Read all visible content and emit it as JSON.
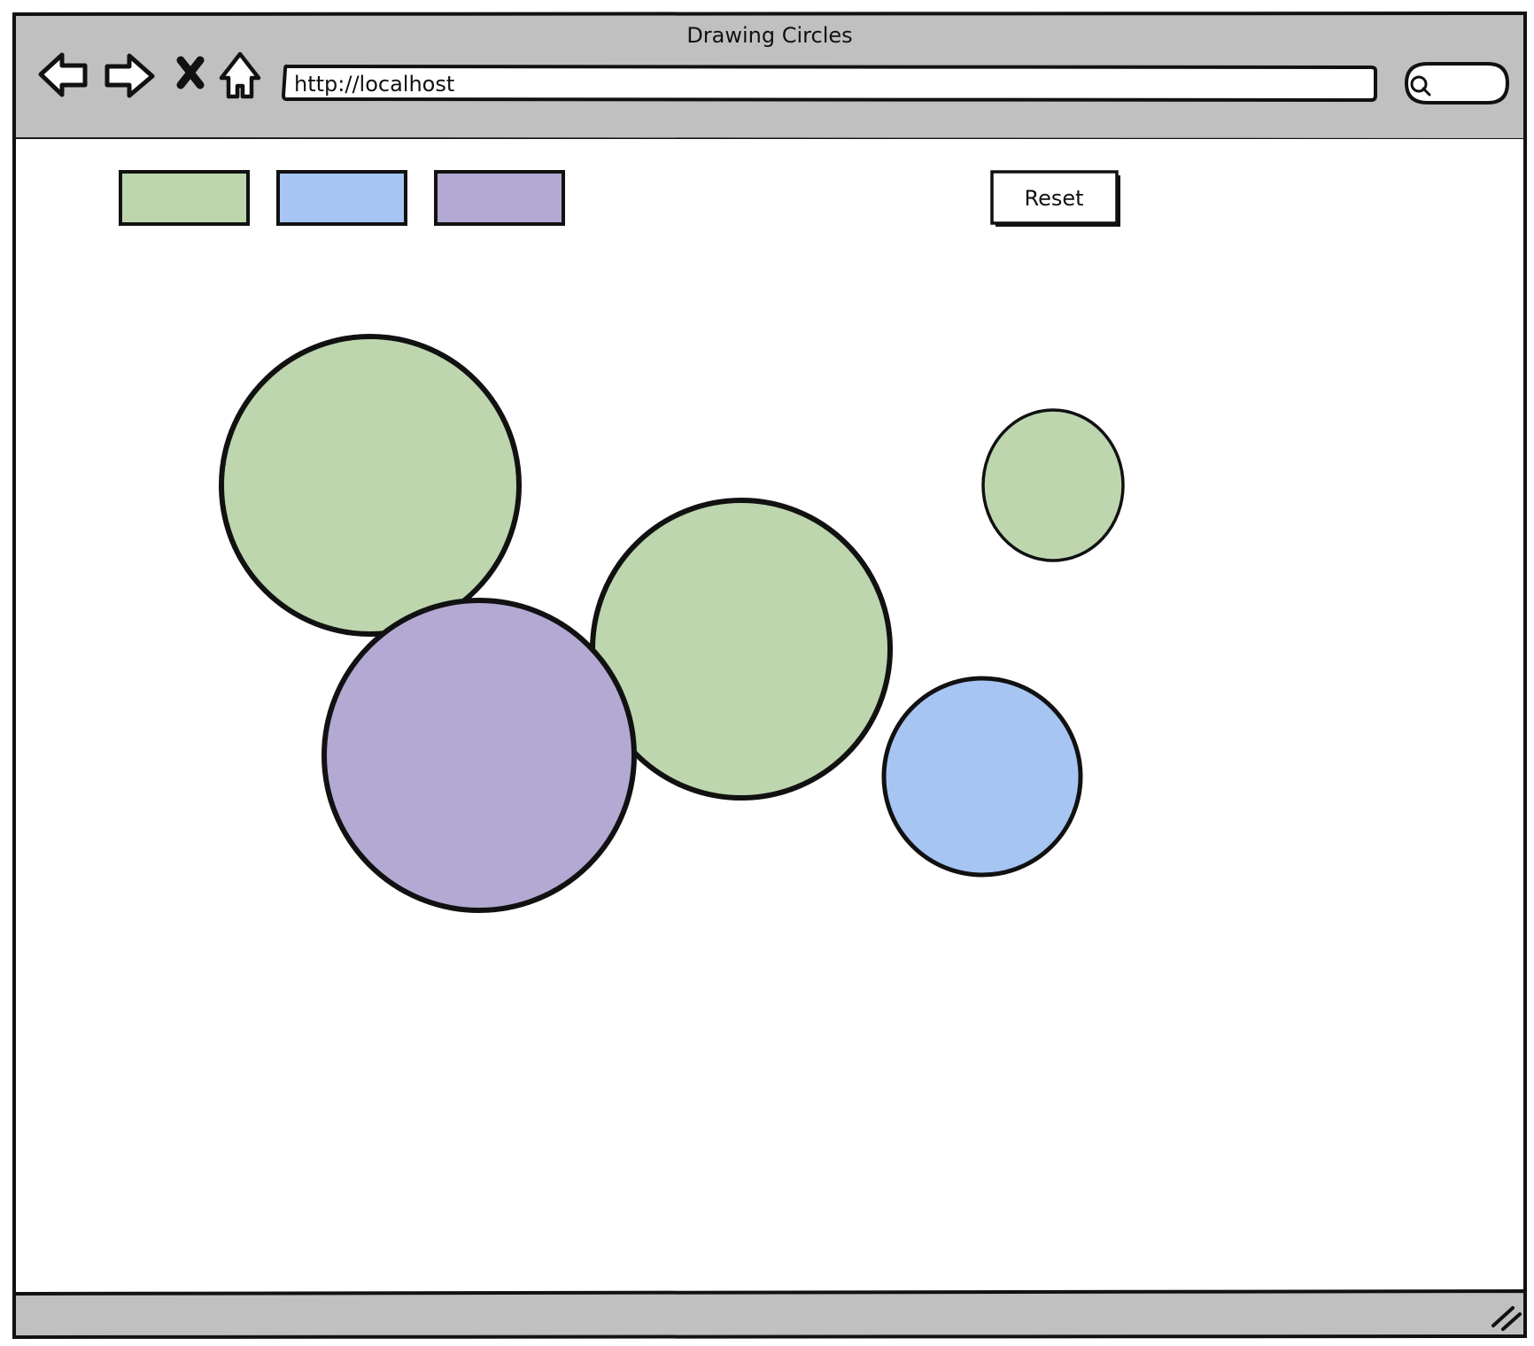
{
  "window": {
    "title": "Drawing Circles"
  },
  "toolbar": {
    "back_icon": "back-arrow-icon",
    "forward_icon": "forward-arrow-icon",
    "stop_icon": "stop-x-icon",
    "home_icon": "home-icon",
    "search_icon": "search-icon"
  },
  "address_bar": {
    "value": "http://localhost"
  },
  "palette": {
    "swatches": [
      {
        "name": "green",
        "color": "#bdd6ae"
      },
      {
        "name": "blue",
        "color": "#a6c5f3"
      },
      {
        "name": "purple",
        "color": "#b3a9d3"
      }
    ]
  },
  "reset_button": {
    "label": "Reset"
  },
  "canvas": {
    "circles": [
      {
        "color": "#bdd6ae",
        "shape": "circle"
      },
      {
        "color": "#bdd6ae",
        "shape": "circle"
      },
      {
        "color": "#bdd6ae",
        "shape": "ellipse"
      },
      {
        "color": "#b3a9d3",
        "shape": "circle"
      },
      {
        "color": "#a6c5f3",
        "shape": "circle"
      }
    ]
  },
  "colors": {
    "chrome": "#c0c0c0",
    "stroke": "#111111",
    "page": "#ffffff"
  },
  "status_bar": {
    "resize_icon": "resize-grip-icon"
  }
}
